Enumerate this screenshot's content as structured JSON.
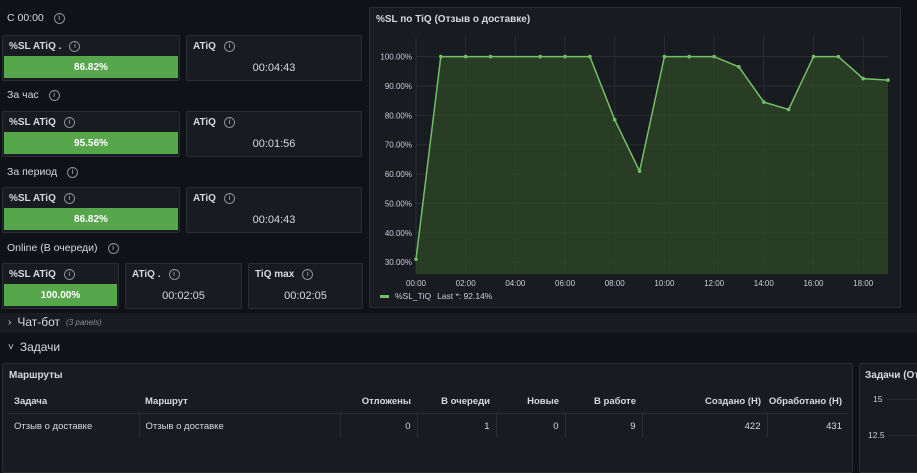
{
  "groups": [
    {
      "label": "С 00:00",
      "sl_title": "%SL ATiQ .",
      "sl_value": "86.82%",
      "atiq_title": "ATiQ",
      "atiq_value": "00:04:43"
    },
    {
      "label": "За час",
      "sl_title": "%SL ATiQ",
      "sl_value": "95.56%",
      "atiq_title": "ATiQ",
      "atiq_value": "00:01:56"
    },
    {
      "label": "За период",
      "sl_title": "%SL ATiQ",
      "sl_value": "86.82%",
      "atiq_title": "ATiQ",
      "atiq_value": "00:04:43"
    }
  ],
  "online": {
    "label": "Online (В очереди)",
    "sl_title": "%SL ATiQ",
    "sl_value": "100.00%",
    "atiq_title": "ATiQ .",
    "atiq_value": "00:02:05",
    "tiqmax_title": "TiQ max",
    "tiqmax_value": "00:02:05"
  },
  "chart_panel": {
    "title": "%SL по TiQ (Отзыв о доставке)",
    "legend_series": "%SL_TiQ",
    "legend_last": "Last *: 92.14%"
  },
  "chart_data": {
    "type": "area",
    "title": "%SL по TiQ (Отзыв о доставке)",
    "x": [
      "00:00",
      "01:00",
      "02:00",
      "03:00",
      "05:00",
      "06:00",
      "07:00",
      "08:00",
      "09:00",
      "10:00",
      "11:00",
      "12:00",
      "13:00",
      "14:00",
      "15:00",
      "16:00",
      "17:00",
      "18:00",
      "19:00"
    ],
    "x_ticks": [
      "00:00",
      "02:00",
      "04:00",
      "06:00",
      "08:00",
      "10:00",
      "12:00",
      "14:00",
      "16:00",
      "18:00"
    ],
    "y_ticks": [
      "30.00%",
      "40.00%",
      "50.00%",
      "60.00%",
      "70.00%",
      "80.00%",
      "90.00%",
      "100.00%"
    ],
    "series": [
      {
        "name": "%SL_TiQ",
        "values": [
          31,
          100,
          100,
          100,
          100,
          100,
          100,
          78.5,
          61,
          100,
          100,
          100,
          96.5,
          84.5,
          82,
          100,
          100,
          92.5,
          92
        ]
      }
    ],
    "ylim": [
      26,
      107
    ],
    "grid": true,
    "legend": "bottom-left",
    "colors": {
      "line": "#73bf69",
      "fill": "#2f4a27"
    }
  },
  "sections": {
    "chatbot": {
      "label": "Чат-бот",
      "count": "(3 panels)"
    },
    "tasks": {
      "label": "Задачи"
    }
  },
  "routes": {
    "title": "Маршруты",
    "headers": [
      "Задача",
      "Маршрут",
      "Отложены",
      "В очереди",
      "Новые",
      "В работе",
      "Создано (Н)",
      "Обработано (Н)"
    ],
    "rows": [
      [
        "Отзыв о доставке",
        "Отзыв о доставке",
        "0",
        "1",
        "0",
        "9",
        "422",
        "431"
      ]
    ]
  },
  "tasks_panel": {
    "title": "Задачи (От",
    "y_ticks": [
      "15",
      "12.5"
    ]
  }
}
